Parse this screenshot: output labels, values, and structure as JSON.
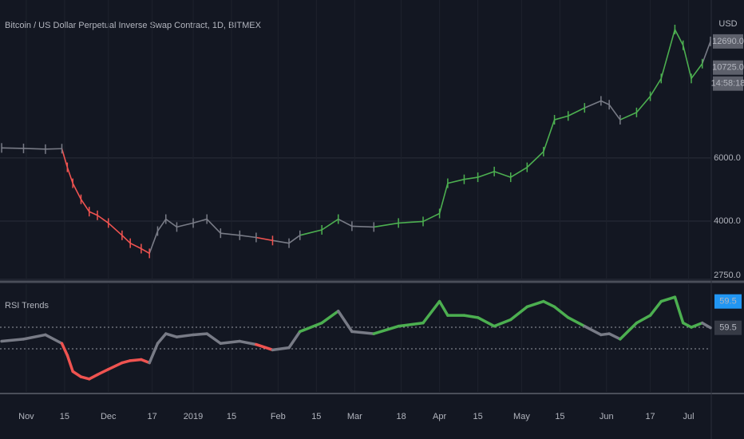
{
  "chart_data": [
    {
      "type": "line",
      "title": "Bitcoin / US Dollar Perpetual Inverse Swap Contract, 1D, BITMEX",
      "currency": "USD",
      "log_scale": true,
      "grid": true,
      "x": [
        0,
        8,
        16,
        22,
        24,
        26,
        29,
        32,
        35,
        39,
        44,
        47,
        51,
        54,
        57,
        60,
        64,
        70,
        75,
        80,
        87,
        93,
        99,
        105,
        109,
        117,
        123,
        128,
        136,
        145,
        154,
        160,
        163,
        169,
        174,
        180,
        186,
        192,
        198,
        202,
        207,
        213,
        219,
        222,
        226,
        232,
        237,
        241,
        246,
        249,
        252,
        256,
        259
      ],
      "values": [
        6400,
        6380,
        6350,
        6370,
        5650,
        5100,
        4600,
        4250,
        4150,
        3950,
        3650,
        3470,
        3350,
        3250,
        3750,
        4050,
        3850,
        3950,
        4050,
        3700,
        3650,
        3600,
        3530,
        3470,
        3650,
        3780,
        4050,
        3870,
        3850,
        3950,
        3990,
        4200,
        5100,
        5230,
        5300,
        5500,
        5300,
        5650,
        6250,
        7670,
        7860,
        8280,
        8660,
        8450,
        7670,
        8040,
        8920,
        10000,
        13700,
        12380,
        10000,
        11000,
        12690
      ],
      "xlim": [
        -0.6,
        259
      ],
      "xticks": [
        {
          "value": 9,
          "label": "Nov"
        },
        {
          "value": 23,
          "label": "15"
        },
        {
          "value": 39,
          "label": "Dec"
        },
        {
          "value": 55,
          "label": "17"
        },
        {
          "value": 70,
          "label": "2019"
        },
        {
          "value": 84,
          "label": "15"
        },
        {
          "value": 101,
          "label": "Feb"
        },
        {
          "value": 115,
          "label": "15"
        },
        {
          "value": 129,
          "label": "Mar"
        },
        {
          "value": 146,
          "label": "18"
        },
        {
          "value": 160,
          "label": "Apr"
        },
        {
          "value": 174,
          "label": "15"
        },
        {
          "value": 190,
          "label": "May"
        },
        {
          "value": 204,
          "label": "15"
        },
        {
          "value": 221,
          "label": "Jun"
        },
        {
          "value": 237,
          "label": "17"
        },
        {
          "value": 251,
          "label": "Jul"
        }
      ],
      "ylim": [
        2750,
        16560
      ],
      "yticks": [
        {
          "value": 2750,
          "label": "2750.0"
        },
        {
          "value": 4000,
          "label": "4000.0"
        },
        {
          "value": 6000,
          "label": "6000.0"
        }
      ],
      "price_tags": [
        {
          "value": 12690,
          "label": "12690.0"
        },
        {
          "value": 10725,
          "label": "10725.0"
        }
      ],
      "countdown": "14:58:18"
    },
    {
      "type": "line",
      "title": "RSI Trends",
      "values": [
        47,
        49,
        53,
        45,
        34,
        19,
        14,
        12,
        16,
        21,
        27,
        29,
        30,
        27,
        45,
        54,
        51,
        53,
        54,
        45,
        47,
        44,
        39,
        41,
        56,
        64,
        75,
        56,
        54,
        61,
        64,
        84,
        71,
        71,
        69,
        61,
        67,
        79,
        84,
        79,
        69,
        61,
        53,
        54,
        49,
        64,
        71,
        84,
        88,
        64,
        60,
        64,
        59.5
      ],
      "ylim": [
        0,
        100
      ],
      "levels": [
        60,
        40
      ],
      "colors": {
        "up": "#4caf50",
        "down": "#ef5350",
        "neutral": "#787b86"
      },
      "value_tags": [
        {
          "value": 59.5,
          "label": "59.5",
          "color": "#2196f3"
        },
        {
          "value": 59.5,
          "label": "59.5",
          "color": "#363a45"
        }
      ]
    }
  ]
}
